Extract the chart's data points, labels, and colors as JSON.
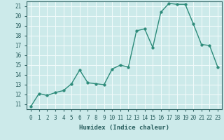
{
  "x": [
    0,
    1,
    2,
    3,
    4,
    5,
    6,
    7,
    8,
    9,
    10,
    11,
    12,
    13,
    14,
    15,
    16,
    17,
    18,
    19,
    20,
    21,
    22,
    23
  ],
  "y": [
    10.8,
    12.1,
    11.9,
    12.2,
    12.4,
    13.1,
    14.5,
    13.2,
    13.1,
    13.0,
    14.6,
    15.0,
    14.8,
    18.5,
    18.7,
    16.8,
    20.4,
    21.3,
    21.2,
    21.2,
    19.2,
    17.1,
    17.0,
    14.8
  ],
  "xlabel": "Humidex (Indice chaleur)",
  "xlim": [
    -0.5,
    23.5
  ],
  "ylim": [
    10.5,
    21.5
  ],
  "yticks": [
    11,
    12,
    13,
    14,
    15,
    16,
    17,
    18,
    19,
    20,
    21
  ],
  "xticks": [
    0,
    1,
    2,
    3,
    4,
    5,
    6,
    7,
    8,
    9,
    10,
    11,
    12,
    13,
    14,
    15,
    16,
    17,
    18,
    19,
    20,
    21,
    22,
    23
  ],
  "line_color": "#2d8b7a",
  "bg_color": "#cceaea",
  "grid_color": "#f0fafa",
  "axis_color": "#336666",
  "label_color": "#2a5f5f",
  "tick_fontsize": 5.5,
  "xlabel_fontsize": 6.5,
  "linewidth": 1.0,
  "markersize": 2.5
}
